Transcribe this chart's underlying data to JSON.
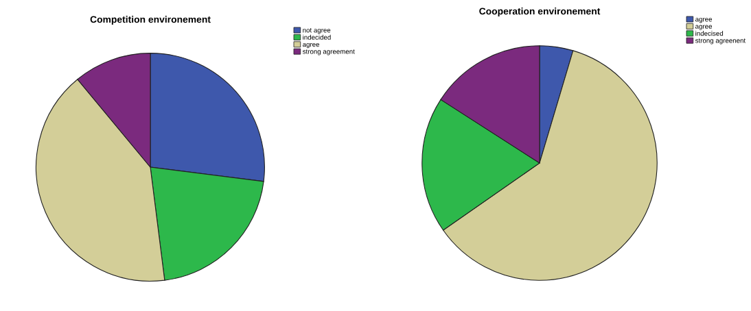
{
  "chart_data": [
    {
      "type": "pie",
      "title": "Competition environement",
      "categories": [
        "not agree",
        "indecided",
        "agree",
        "strong agreement"
      ],
      "values": [
        27,
        21,
        41,
        11
      ],
      "colors": [
        "#3e58ac",
        "#2db84b",
        "#d3ce98",
        "#7b2a7e"
      ],
      "legend": "top right"
    },
    {
      "type": "pie",
      "title": "Cooperation environement",
      "categories": [
        "agree",
        "agree",
        "indecised",
        "strong agreenent"
      ],
      "values": [
        4.6,
        60.7,
        18.8,
        15.9
      ],
      "colors": [
        "#3e58ac",
        "#d3ce98",
        "#2db84b",
        "#7b2a7e"
      ],
      "legend": "top right"
    }
  ]
}
